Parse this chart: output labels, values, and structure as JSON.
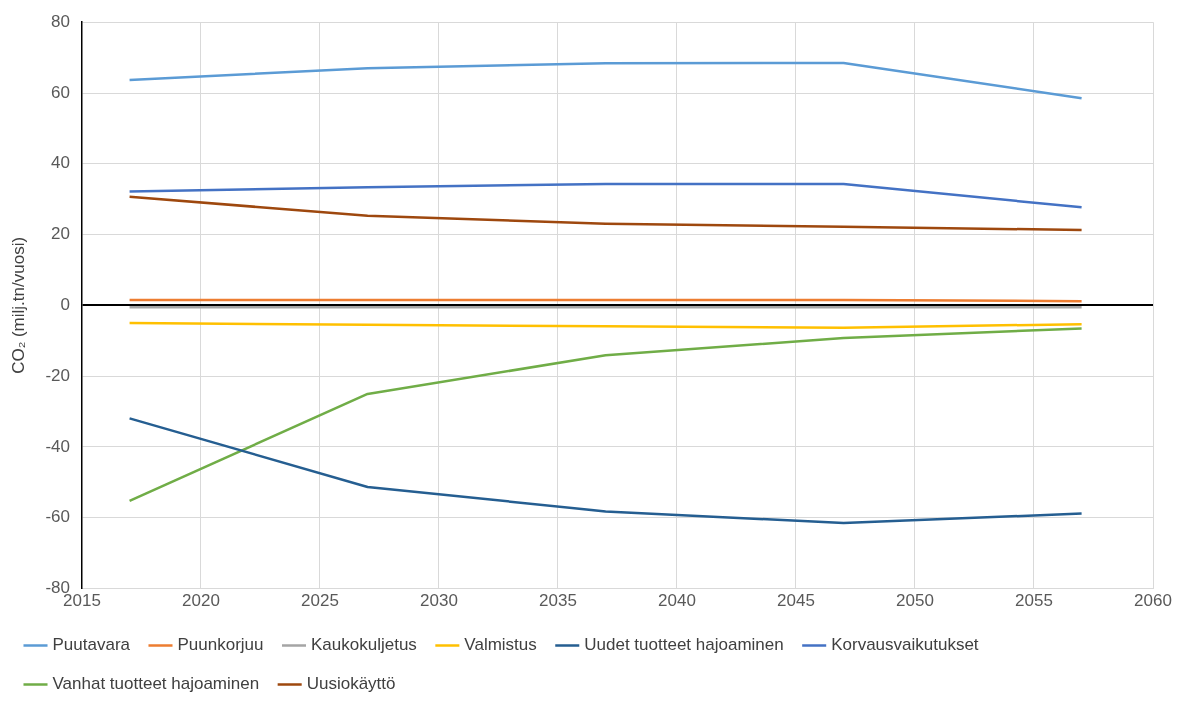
{
  "chart_data": {
    "type": "line",
    "ylabel": "CO₂ (milj.tn/vuosi)",
    "x": [
      2017,
      2027,
      2037,
      2047,
      2057
    ],
    "xlim": [
      2015,
      2060
    ],
    "xticks": [
      2015,
      2020,
      2025,
      2030,
      2035,
      2040,
      2045,
      2050,
      2055,
      2060
    ],
    "ylim": [
      -80,
      80
    ],
    "yticks": [
      -80,
      -60,
      -40,
      -20,
      0,
      20,
      40,
      60,
      80
    ],
    "grid": true,
    "legend": "bottom",
    "marker": "none",
    "line_style": "solid",
    "series": [
      {
        "name": "Puutavara",
        "color": "#5b9bd5",
        "values": [
          63.7,
          67,
          68.4,
          68.5,
          58.5
        ]
      },
      {
        "name": "Puunkorjuu",
        "color": "#ed7d31",
        "values": [
          1.5,
          1.5,
          1.5,
          1.5,
          1.2
        ]
      },
      {
        "name": "Kaukokuljetus",
        "color": "#a5a5a5",
        "values": [
          -0.5,
          -0.5,
          -0.5,
          -0.5,
          -0.5
        ]
      },
      {
        "name": "Valmistus",
        "color": "#ffc000",
        "values": [
          -5,
          -5.5,
          -5.9,
          -6.3,
          -5.3
        ]
      },
      {
        "name": "Uudet tuotteet hajoaminen",
        "color": "#255e91",
        "values": [
          -31.9,
          -51.3,
          -58.2,
          -61.5,
          -58.8
        ]
      },
      {
        "name": "Korvausvaikutukset",
        "color": "#4472c4",
        "values": [
          32.2,
          33.4,
          34.3,
          34.3,
          27.7
        ]
      },
      {
        "name": "Vanhat tuotteet hajoaminen",
        "color": "#70ad47",
        "values": [
          -55.2,
          -25,
          -14.1,
          -9.2,
          -6.5
        ]
      },
      {
        "name": "Uusiokäyttö",
        "color": "#9e480e",
        "values": [
          30.7,
          25.3,
          23.1,
          22.2,
          21.3
        ]
      }
    ]
  }
}
